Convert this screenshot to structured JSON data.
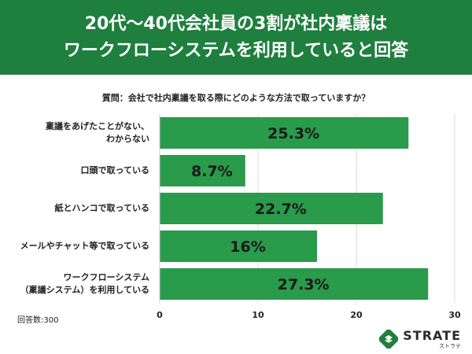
{
  "header": {
    "title_line1": "20代〜40代会社員の3割が社内稟議は",
    "title_line2": "ワークフローシステムを利用していると回答"
  },
  "question": "質問：会社で社内稟議を取る際にどのような方法で取っていますか？",
  "respondents": "回答数:300",
  "logo": {
    "brand": "STRATE",
    "kana": "ストラテ"
  },
  "colors": {
    "header": "#1f7f3e",
    "bar": "#2a9a4b",
    "bar_text": "#1a1a1a"
  },
  "chart_data": {
    "type": "bar",
    "orientation": "horizontal",
    "categories": [
      [
        "稟議をあげたことがない、",
        "わからない"
      ],
      [
        "口頭で取っている"
      ],
      [
        "紙とハンコで取っている"
      ],
      [
        "メールやチャット等で取っている"
      ],
      [
        "ワークフローシステム",
        "（稟議システム）を利用している"
      ]
    ],
    "values": [
      25.3,
      8.7,
      22.7,
      16,
      27.3
    ],
    "value_labels": [
      "25.3%",
      "8.7%",
      "22.7%",
      "16%",
      "27.3%"
    ],
    "xlim": [
      0,
      30
    ],
    "xticks": [
      0,
      10,
      20,
      30
    ],
    "grid": true
  }
}
